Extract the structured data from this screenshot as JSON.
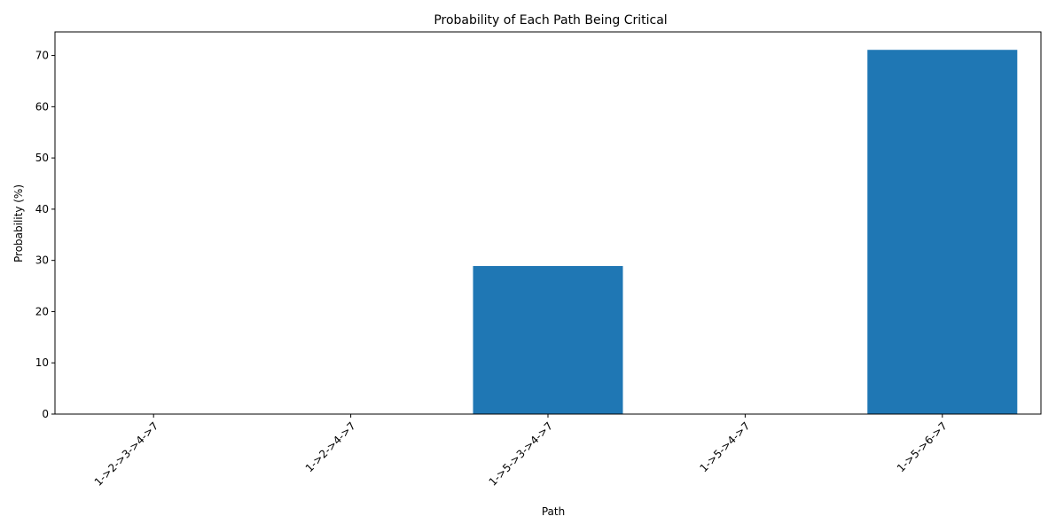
{
  "chart_data": {
    "type": "bar",
    "title": "Probability of Each Path Being Critical",
    "xlabel": "Path",
    "ylabel": "Probability (%)",
    "categories": [
      "1->2->3->4->7",
      "1->2->4->7",
      "1->5->3->4->7",
      "1->5->4->7",
      "1->5->6->7"
    ],
    "values": [
      0,
      0,
      28.9,
      0,
      71.1
    ],
    "ylim": [
      0,
      74.6
    ],
    "yticks": [
      0,
      10,
      20,
      30,
      40,
      50,
      60,
      70
    ],
    "grid": false,
    "legend": "none",
    "bar_color": "#1f77b4",
    "xtick_rotation_deg": 45
  }
}
